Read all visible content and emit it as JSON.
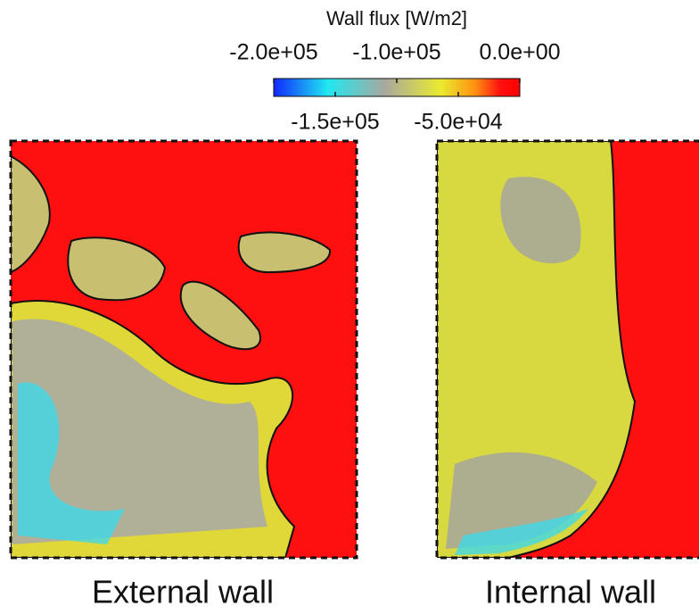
{
  "colorbar": {
    "title": "Wall flux [W/m2]",
    "lim": [
      -200000,
      0
    ],
    "ticks_top": [
      {
        "value": -200000,
        "label": "-2.0e+05"
      },
      {
        "value": -100000,
        "label": "-1.0e+05"
      },
      {
        "value": 0,
        "label": "0.0e+00"
      }
    ],
    "ticks_bottom": [
      {
        "value": -150000,
        "label": "-1.5e+05"
      },
      {
        "value": -50000,
        "label": "-5.0e+04"
      }
    ]
  },
  "panels": [
    {
      "label": "External wall"
    },
    {
      "label": "Internal wall"
    }
  ]
}
